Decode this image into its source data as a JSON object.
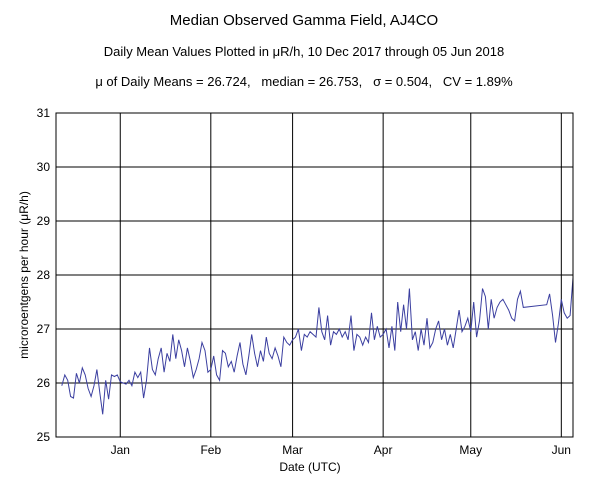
{
  "chart_data": {
    "type": "line",
    "title": "Median Observed Gamma Field, AJ4CO",
    "subtitle": "Daily Mean Values Plotted in μR/h, 10 Dec 2017 through 05 Jun 2018",
    "stats": "μ of Daily Means = 26.724,   median = 26.753,   σ = 0.504,   CV = 1.89%",
    "xlabel": "Date (UTC)",
    "ylabel": "microroentgens per hour (μR/h)",
    "xlim": [
      "2017-12-10",
      "2018-06-05"
    ],
    "ylim": [
      25,
      31
    ],
    "x_ticks": [
      {
        "label": "Jan",
        "date": "2018-01-01"
      },
      {
        "label": "Feb",
        "date": "2018-02-01"
      },
      {
        "label": "Mar",
        "date": "2018-03-01"
      },
      {
        "label": "Apr",
        "date": "2018-04-01"
      },
      {
        "label": "May",
        "date": "2018-05-01"
      },
      {
        "label": "Jun",
        "date": "2018-06-01"
      }
    ],
    "y_ticks": [
      "25",
      "26",
      "27",
      "28",
      "29",
      "30",
      "31"
    ],
    "grid": true,
    "line_color": "#3b3fa0",
    "series": [
      {
        "x": [
          "2017-12-12",
          "2017-12-13",
          "2017-12-14",
          "2017-12-15",
          "2017-12-16",
          "2017-12-17",
          "2017-12-18",
          "2017-12-19",
          "2017-12-20",
          "2017-12-21",
          "2017-12-22",
          "2017-12-23",
          "2017-12-24",
          "2017-12-25",
          "2017-12-26",
          "2017-12-27",
          "2017-12-28",
          "2017-12-29",
          "2017-12-30",
          "2017-12-31",
          "2018-01-01",
          "2018-01-02",
          "2018-01-03",
          "2018-01-04",
          "2018-01-05",
          "2018-01-06",
          "2018-01-07",
          "2018-01-08",
          "2018-01-09",
          "2018-01-10",
          "2018-01-11",
          "2018-01-12",
          "2018-01-13",
          "2018-01-14",
          "2018-01-15",
          "2018-01-16",
          "2018-01-17",
          "2018-01-18",
          "2018-01-19",
          "2018-01-20",
          "2018-01-21",
          "2018-01-22",
          "2018-01-23",
          "2018-01-24",
          "2018-01-25",
          "2018-01-26",
          "2018-01-27",
          "2018-01-28",
          "2018-01-29",
          "2018-01-30",
          "2018-01-31",
          "2018-02-01",
          "2018-02-02",
          "2018-02-03",
          "2018-02-04",
          "2018-02-05",
          "2018-02-06",
          "2018-02-07",
          "2018-02-08",
          "2018-02-09",
          "2018-02-10",
          "2018-02-11",
          "2018-02-12",
          "2018-02-13",
          "2018-02-14",
          "2018-02-15",
          "2018-02-16",
          "2018-02-17",
          "2018-02-18",
          "2018-02-19",
          "2018-02-20",
          "2018-02-21",
          "2018-02-22",
          "2018-02-23",
          "2018-02-24",
          "2018-02-25",
          "2018-02-26",
          "2018-02-27",
          "2018-02-28",
          "2018-03-01",
          "2018-03-02",
          "2018-03-03",
          "2018-03-04",
          "2018-03-05",
          "2018-03-06",
          "2018-03-07",
          "2018-03-08",
          "2018-03-09",
          "2018-03-10",
          "2018-03-11",
          "2018-03-12",
          "2018-03-13",
          "2018-03-14",
          "2018-03-15",
          "2018-03-16",
          "2018-03-17",
          "2018-03-18",
          "2018-03-19",
          "2018-03-20",
          "2018-03-21",
          "2018-03-22",
          "2018-03-23",
          "2018-03-24",
          "2018-03-25",
          "2018-03-26",
          "2018-03-27",
          "2018-03-28",
          "2018-03-29",
          "2018-03-30",
          "2018-03-31",
          "2018-04-01",
          "2018-04-02",
          "2018-04-03",
          "2018-04-04",
          "2018-04-05",
          "2018-04-06",
          "2018-04-07",
          "2018-04-08",
          "2018-04-09",
          "2018-04-10",
          "2018-04-11",
          "2018-04-12",
          "2018-04-13",
          "2018-04-14",
          "2018-04-15",
          "2018-04-16",
          "2018-04-17",
          "2018-04-18",
          "2018-04-19",
          "2018-04-20",
          "2018-04-21",
          "2018-04-22",
          "2018-04-23",
          "2018-04-24",
          "2018-04-25",
          "2018-04-26",
          "2018-04-27",
          "2018-04-28",
          "2018-04-29",
          "2018-04-30",
          "2018-05-01",
          "2018-05-02",
          "2018-05-03",
          "2018-05-04",
          "2018-05-05",
          "2018-05-06",
          "2018-05-07",
          "2018-05-08",
          "2018-05-09",
          "2018-05-10",
          "2018-05-11",
          "2018-05-12",
          "2018-05-13",
          "2018-05-14",
          "2018-05-15",
          "2018-05-16",
          "2018-05-17",
          "2018-05-18",
          "2018-05-19",
          "2018-05-27",
          "2018-05-28",
          "2018-05-29",
          "2018-05-30",
          "2018-05-31",
          "2018-06-01",
          "2018-06-02",
          "2018-06-03",
          "2018-06-04",
          "2018-06-05"
        ],
        "values": [
          25.95,
          26.15,
          26.05,
          25.75,
          25.72,
          26.18,
          26.0,
          26.28,
          26.15,
          25.9,
          25.75,
          25.95,
          26.25,
          25.82,
          25.42,
          26.05,
          25.7,
          26.15,
          26.12,
          26.15,
          26.02,
          26.0,
          25.98,
          26.05,
          25.95,
          26.2,
          26.1,
          26.2,
          25.72,
          26.05,
          26.65,
          26.25,
          26.15,
          26.45,
          26.65,
          26.2,
          26.55,
          26.4,
          26.9,
          26.45,
          26.8,
          26.6,
          26.3,
          26.65,
          26.4,
          26.1,
          26.25,
          26.45,
          26.75,
          26.6,
          26.2,
          26.25,
          26.5,
          26.15,
          26.05,
          26.6,
          26.55,
          26.3,
          26.4,
          26.2,
          26.5,
          26.75,
          26.35,
          26.15,
          26.5,
          26.9,
          26.55,
          26.3,
          26.6,
          26.4,
          26.85,
          26.55,
          26.45,
          26.65,
          26.5,
          26.3,
          26.85,
          26.75,
          26.7,
          26.8,
          26.85,
          27.0,
          26.6,
          26.9,
          26.85,
          26.95,
          26.9,
          26.85,
          27.4,
          26.95,
          26.8,
          27.25,
          26.7,
          26.95,
          26.9,
          27.0,
          26.85,
          26.95,
          26.8,
          27.25,
          26.6,
          26.9,
          26.85,
          26.7,
          26.85,
          26.75,
          27.3,
          26.8,
          27.05,
          26.85,
          26.9,
          27.0,
          26.65,
          27.05,
          26.6,
          27.5,
          26.95,
          27.45,
          27.0,
          27.75,
          26.8,
          26.95,
          26.6,
          27.0,
          26.7,
          27.2,
          26.65,
          26.75,
          27.0,
          27.15,
          26.8,
          27.0,
          26.7,
          26.9,
          26.65,
          27.0,
          27.35,
          26.95,
          27.05,
          27.2,
          26.95,
          27.5,
          26.85,
          27.15,
          27.75,
          27.6,
          27.0,
          27.55,
          27.2,
          27.4,
          27.5,
          27.55,
          27.45,
          27.35,
          27.2,
          27.15,
          27.55,
          27.7,
          27.4,
          27.45,
          27.65,
          27.25,
          26.75,
          27.1,
          27.55,
          27.3,
          27.2,
          27.25,
          27.95
        ]
      }
    ]
  }
}
